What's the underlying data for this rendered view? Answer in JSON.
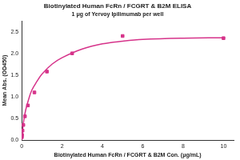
{
  "chart_data": {
    "type": "scatter",
    "title": "Biotinylated Human FcRn / FCGRT & B2M ELISA",
    "subtitle": "1 μg of Yervoy Ipilimumab per well",
    "x_label": "Biotinylated Human FcRn / FCGRT & B2M Con. (μg/mL)",
    "y_label": "Mean Abs. (OD450)",
    "series": [
      {
        "type": "scatter",
        "color": "#d6338a",
        "marker": "square",
        "x": [
          0.01,
          0.02,
          0.04,
          0.08,
          0.16,
          0.31,
          0.63,
          1.25,
          2.5,
          5,
          10
        ],
        "values": [
          0.07,
          0.12,
          0.22,
          0.35,
          0.55,
          0.8,
          1.1,
          1.58,
          2.0,
          2.4,
          2.35
        ]
      },
      {
        "type": "line",
        "color": "#d6338a",
        "line_style": "solid",
        "x": [
          0,
          0.05,
          0.1,
          0.2,
          0.35,
          0.5,
          0.75,
          1,
          1.5,
          2,
          3,
          4,
          5,
          6,
          8,
          10
        ],
        "values": [
          0,
          0.25,
          0.45,
          0.7,
          0.95,
          1.15,
          1.35,
          1.52,
          1.75,
          1.9,
          2.1,
          2.22,
          2.28,
          2.32,
          2.35,
          2.36
        ]
      }
    ],
    "xlim": [
      0,
      10.5
    ],
    "xticks": [
      0,
      2,
      4,
      6,
      8,
      10
    ],
    "ylim": [
      0,
      2.75
    ],
    "yticks": [
      {
        "value": 0,
        "label": "0.0"
      },
      {
        "value": 0.5,
        "label": "0.5"
      },
      {
        "value": 1,
        "label": "1.0"
      },
      {
        "value": 1.5,
        "label": "1.5"
      },
      {
        "value": 2,
        "label": "2.0"
      },
      {
        "value": 2.5,
        "label": "2.5"
      }
    ],
    "grid": false
  }
}
